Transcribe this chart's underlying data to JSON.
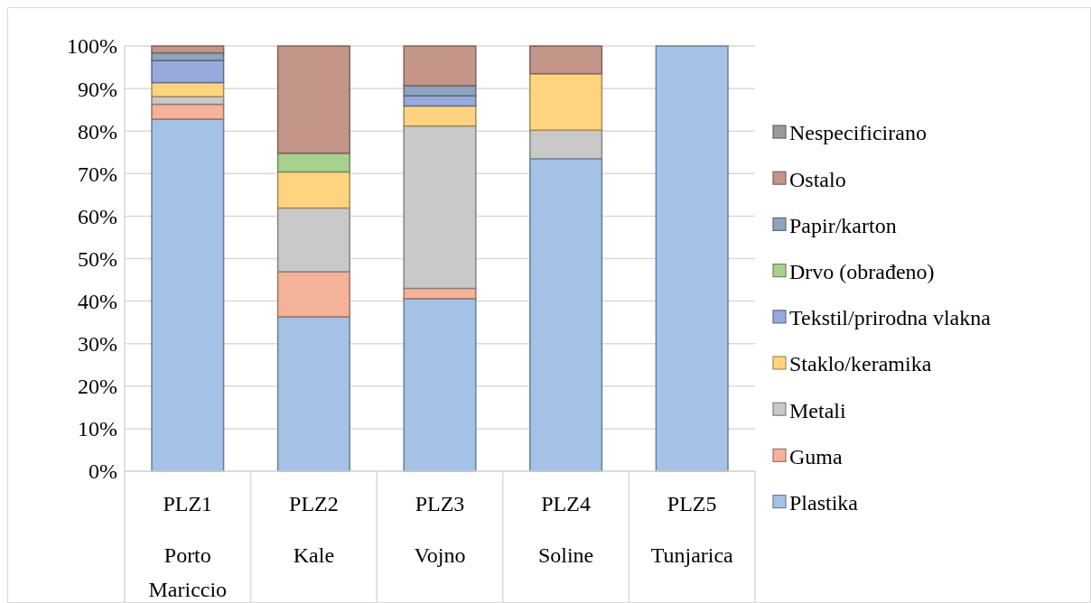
{
  "chart_data": {
    "type": "bar",
    "stacked": true,
    "categories": [
      "PLZ1\nPorto Mariccio",
      "PLZ2\nKale",
      "PLZ3\nVojno",
      "PLZ4\nSoline",
      "PLZ5\nTunjarica"
    ],
    "series": [
      {
        "name": "Plastika",
        "color": "#a4c2e6",
        "values": [
          82.8,
          36.3,
          40.6,
          73.5,
          100
        ]
      },
      {
        "name": "Guma",
        "color": "#f4b299",
        "values": [
          3.5,
          10.6,
          2.4,
          0,
          0
        ]
      },
      {
        "name": "Metali",
        "color": "#c9c9c9",
        "values": [
          1.8,
          15.0,
          38.2,
          6.7,
          0
        ]
      },
      {
        "name": "Staklo/keramika",
        "color": "#ffd480",
        "values": [
          3.3,
          8.5,
          4.7,
          13.3,
          0
        ]
      },
      {
        "name": "Tekstil/prirodna vlakna",
        "color": "#98a9dc",
        "values": [
          5.2,
          0,
          2.4,
          0,
          0
        ]
      },
      {
        "name": "Drvo (obrađeno)",
        "color": "#a9d18e",
        "values": [
          0,
          4.4,
          0,
          0,
          0
        ]
      },
      {
        "name": "Papir/karton",
        "color": "#8ea3bd",
        "values": [
          1.8,
          0,
          2.4,
          0,
          0
        ]
      },
      {
        "name": "Ostalo",
        "color": "#c4968a",
        "values": [
          1.6,
          25.2,
          9.3,
          6.5,
          0
        ]
      },
      {
        "name": "Nespecificirano",
        "color": "#9a9a9a",
        "values": [
          0,
          0,
          0,
          0,
          0
        ]
      }
    ],
    "ylim": [
      0,
      100
    ],
    "yticks": [
      {
        "value": 0,
        "label": "0%"
      },
      {
        "value": 10,
        "label": "10%"
      },
      {
        "value": 20,
        "label": "20%"
      },
      {
        "value": 30,
        "label": "30%"
      },
      {
        "value": 40,
        "label": "40%"
      },
      {
        "value": 50,
        "label": "50%"
      },
      {
        "value": 60,
        "label": "60%"
      },
      {
        "value": 70,
        "label": "70%"
      },
      {
        "value": 80,
        "label": "80%"
      },
      {
        "value": 90,
        "label": "90%"
      },
      {
        "value": 100,
        "label": "100%"
      }
    ],
    "grid": "y",
    "legend": "right"
  }
}
